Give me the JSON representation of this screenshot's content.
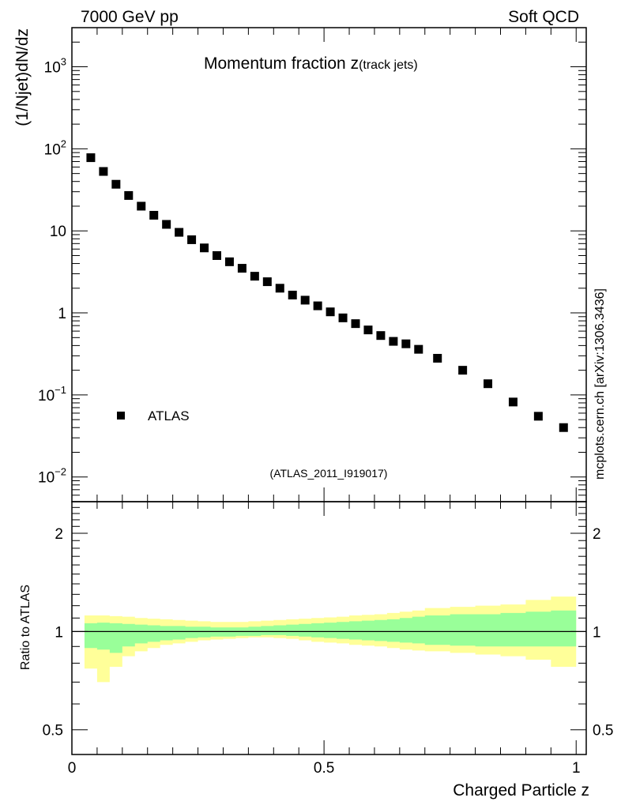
{
  "header": {
    "left": "7000 GeV pp",
    "right": "Soft QCD",
    "side_label": "mcplots.cern.ch [arXiv:1306.3436]"
  },
  "chart_data": [
    {
      "type": "scatter",
      "title_main": "Momentum fraction z",
      "title_sub": "(track jets)",
      "ylabel": "(1/Njet)dN/dz",
      "yscale": "log",
      "ylim": [
        0.005,
        3000
      ],
      "xlim": [
        0,
        1.02
      ],
      "ytick_labels": [
        {
          "value": 0.01,
          "base": "10",
          "exp": "−2"
        },
        {
          "value": 0.1,
          "base": "10",
          "exp": "−1"
        },
        {
          "value": 1,
          "base": "1",
          "exp": ""
        },
        {
          "value": 10,
          "base": "10",
          "exp": ""
        },
        {
          "value": 100,
          "base": "10",
          "exp": "2"
        },
        {
          "value": 1000,
          "base": "10",
          "exp": "3"
        }
      ],
      "legend_label": "ATLAS",
      "legend_position": "lower-left",
      "analysis_label": "(ATLAS_2011_I919017)",
      "series": [
        {
          "name": "ATLAS",
          "x": [
            0.0375,
            0.0625,
            0.0875,
            0.1125,
            0.1375,
            0.1625,
            0.1875,
            0.2125,
            0.2375,
            0.2625,
            0.2875,
            0.3125,
            0.3375,
            0.3625,
            0.3875,
            0.4125,
            0.4375,
            0.4625,
            0.4875,
            0.5125,
            0.5375,
            0.5625,
            0.5875,
            0.6125,
            0.6375,
            0.6625,
            0.6875,
            0.725,
            0.775,
            0.825,
            0.875,
            0.925,
            0.975
          ],
          "y": [
            78,
            53,
            37,
            27,
            20,
            15.5,
            12,
            9.6,
            7.8,
            6.2,
            5.0,
            4.2,
            3.5,
            2.8,
            2.4,
            2.0,
            1.65,
            1.43,
            1.22,
            1.03,
            0.87,
            0.74,
            0.62,
            0.53,
            0.45,
            0.42,
            0.36,
            0.28,
            0.2,
            0.137,
            0.082,
            0.055,
            0.04
          ]
        }
      ]
    },
    {
      "type": "area",
      "ylabel": "Ratio to ATLAS",
      "xlabel": "Charged Particle z",
      "yscale": "log",
      "ylim": [
        0.42,
        2.5
      ],
      "xlim": [
        0,
        1.02
      ],
      "ytick_labels": [
        "0.5",
        "1",
        "2"
      ],
      "ytick_values": [
        0.5,
        1,
        2
      ],
      "xtick_labels": [
        "0",
        "0.5",
        "1"
      ],
      "xtick_values": [
        0,
        0.5,
        1
      ],
      "reference_line": 1,
      "bands": {
        "bin_edges": [
          0.025,
          0.05,
          0.075,
          0.1,
          0.125,
          0.15,
          0.175,
          0.2,
          0.225,
          0.25,
          0.275,
          0.3,
          0.325,
          0.35,
          0.375,
          0.4,
          0.425,
          0.45,
          0.475,
          0.5,
          0.525,
          0.55,
          0.575,
          0.6,
          0.625,
          0.65,
          0.675,
          0.7,
          0.75,
          0.8,
          0.85,
          0.9,
          0.95,
          1.0
        ],
        "yellow_low": [
          0.77,
          0.7,
          0.78,
          0.84,
          0.87,
          0.89,
          0.91,
          0.92,
          0.93,
          0.94,
          0.945,
          0.95,
          0.955,
          0.96,
          0.96,
          0.955,
          0.95,
          0.94,
          0.93,
          0.925,
          0.92,
          0.91,
          0.905,
          0.9,
          0.89,
          0.88,
          0.875,
          0.87,
          0.86,
          0.85,
          0.84,
          0.82,
          0.78
        ],
        "yellow_high": [
          1.12,
          1.12,
          1.115,
          1.11,
          1.1,
          1.095,
          1.09,
          1.085,
          1.08,
          1.075,
          1.07,
          1.07,
          1.07,
          1.075,
          1.08,
          1.085,
          1.09,
          1.095,
          1.1,
          1.105,
          1.11,
          1.12,
          1.125,
          1.13,
          1.14,
          1.15,
          1.16,
          1.18,
          1.19,
          1.2,
          1.21,
          1.25,
          1.28
        ],
        "green_low": [
          0.89,
          0.88,
          0.86,
          0.9,
          0.92,
          0.93,
          0.94,
          0.945,
          0.955,
          0.96,
          0.965,
          0.965,
          0.97,
          0.97,
          0.975,
          0.975,
          0.97,
          0.965,
          0.96,
          0.955,
          0.95,
          0.945,
          0.94,
          0.935,
          0.93,
          0.925,
          0.92,
          0.91,
          0.905,
          0.9,
          0.9,
          0.9,
          0.9
        ],
        "green_high": [
          1.06,
          1.065,
          1.06,
          1.055,
          1.05,
          1.045,
          1.04,
          1.04,
          1.035,
          1.035,
          1.03,
          1.03,
          1.03,
          1.035,
          1.04,
          1.045,
          1.05,
          1.055,
          1.06,
          1.065,
          1.07,
          1.075,
          1.08,
          1.085,
          1.09,
          1.1,
          1.11,
          1.12,
          1.13,
          1.13,
          1.14,
          1.15,
          1.16
        ]
      }
    }
  ],
  "colors": {
    "band_outer": "#ffff99",
    "band_inner": "#99ff99",
    "marker": "#000000",
    "analysis_label": "#999999",
    "side_label": "#666666"
  }
}
